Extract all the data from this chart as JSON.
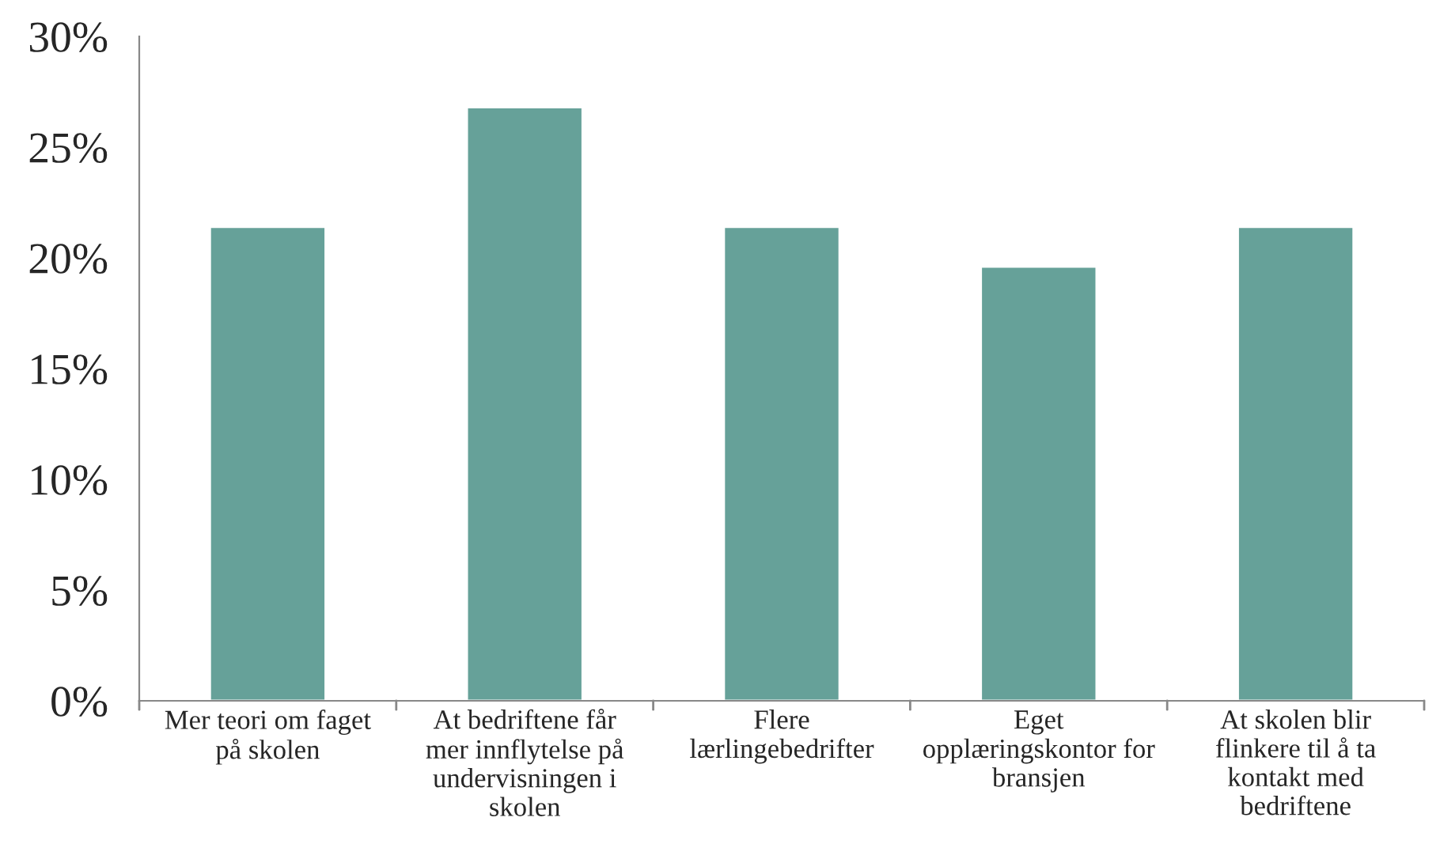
{
  "chart_data": {
    "type": "bar",
    "categories": [
      "Mer teori om faget på skolen",
      "At bedriftene får mer innflytelse på undervisningen i skolen",
      "Flere lærlingebedrifter",
      "Eget opplæringskontor for bransjen",
      "At skolen blir flinkere til å ta kontakt med bedriftene"
    ],
    "values": [
      21.4,
      26.8,
      21.4,
      19.6,
      21.4
    ],
    "color": "#66a199",
    "ylim": [
      0,
      30
    ],
    "yticks": [
      {
        "value": 0,
        "label": "0%"
      },
      {
        "value": 5,
        "label": "5%"
      },
      {
        "value": 10,
        "label": "10%"
      },
      {
        "value": 15,
        "label": "15%"
      },
      {
        "value": 20,
        "label": "20%"
      },
      {
        "value": 25,
        "label": "25%"
      },
      {
        "value": 30,
        "label": "30%"
      }
    ],
    "grid": false
  }
}
